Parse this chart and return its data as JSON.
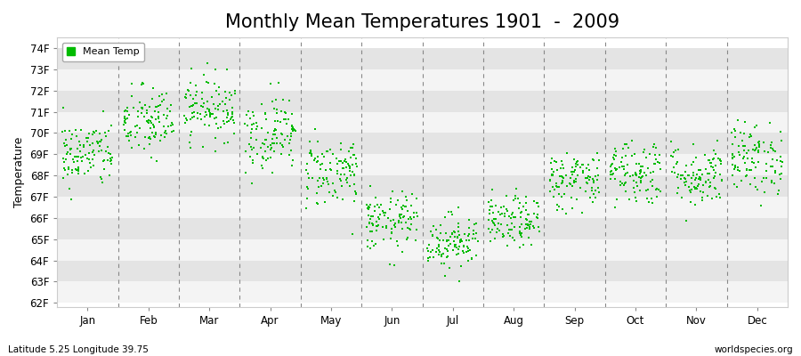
{
  "title": "Monthly Mean Temperatures 1901  -  2009",
  "ylabel": "Temperature",
  "xlabel_labels": [
    "Jan",
    "Feb",
    "Mar",
    "Apr",
    "May",
    "Jun",
    "Jul",
    "Aug",
    "Sep",
    "Oct",
    "Nov",
    "Dec"
  ],
  "ytick_labels": [
    "62F",
    "63F",
    "64F",
    "65F",
    "66F",
    "67F",
    "68F",
    "69F",
    "70F",
    "71F",
    "72F",
    "73F",
    "74F"
  ],
  "ytick_values": [
    62,
    63,
    64,
    65,
    66,
    67,
    68,
    69,
    70,
    71,
    72,
    73,
    74
  ],
  "ylim": [
    61.8,
    74.5
  ],
  "dot_color": "#00BB00",
  "band_color_light": "#F4F4F4",
  "band_color_dark": "#E4E4E4",
  "bg_color": "#FFFFFF",
  "fig_color": "#FFFFFF",
  "legend_label": "Mean Temp",
  "subtitle": "Latitude 5.25 Longitude 39.75",
  "watermark": "worldspecies.org",
  "title_fontsize": 15,
  "axis_label_fontsize": 9,
  "tick_fontsize": 8.5,
  "num_years": 109,
  "seed": 42,
  "monthly_means": [
    69.0,
    70.5,
    71.2,
    70.0,
    68.2,
    65.8,
    64.9,
    65.8,
    67.8,
    68.2,
    68.0,
    68.8
  ],
  "monthly_stds": [
    0.8,
    0.85,
    0.75,
    0.9,
    0.85,
    0.7,
    0.65,
    0.6,
    0.7,
    0.8,
    0.75,
    0.85
  ]
}
